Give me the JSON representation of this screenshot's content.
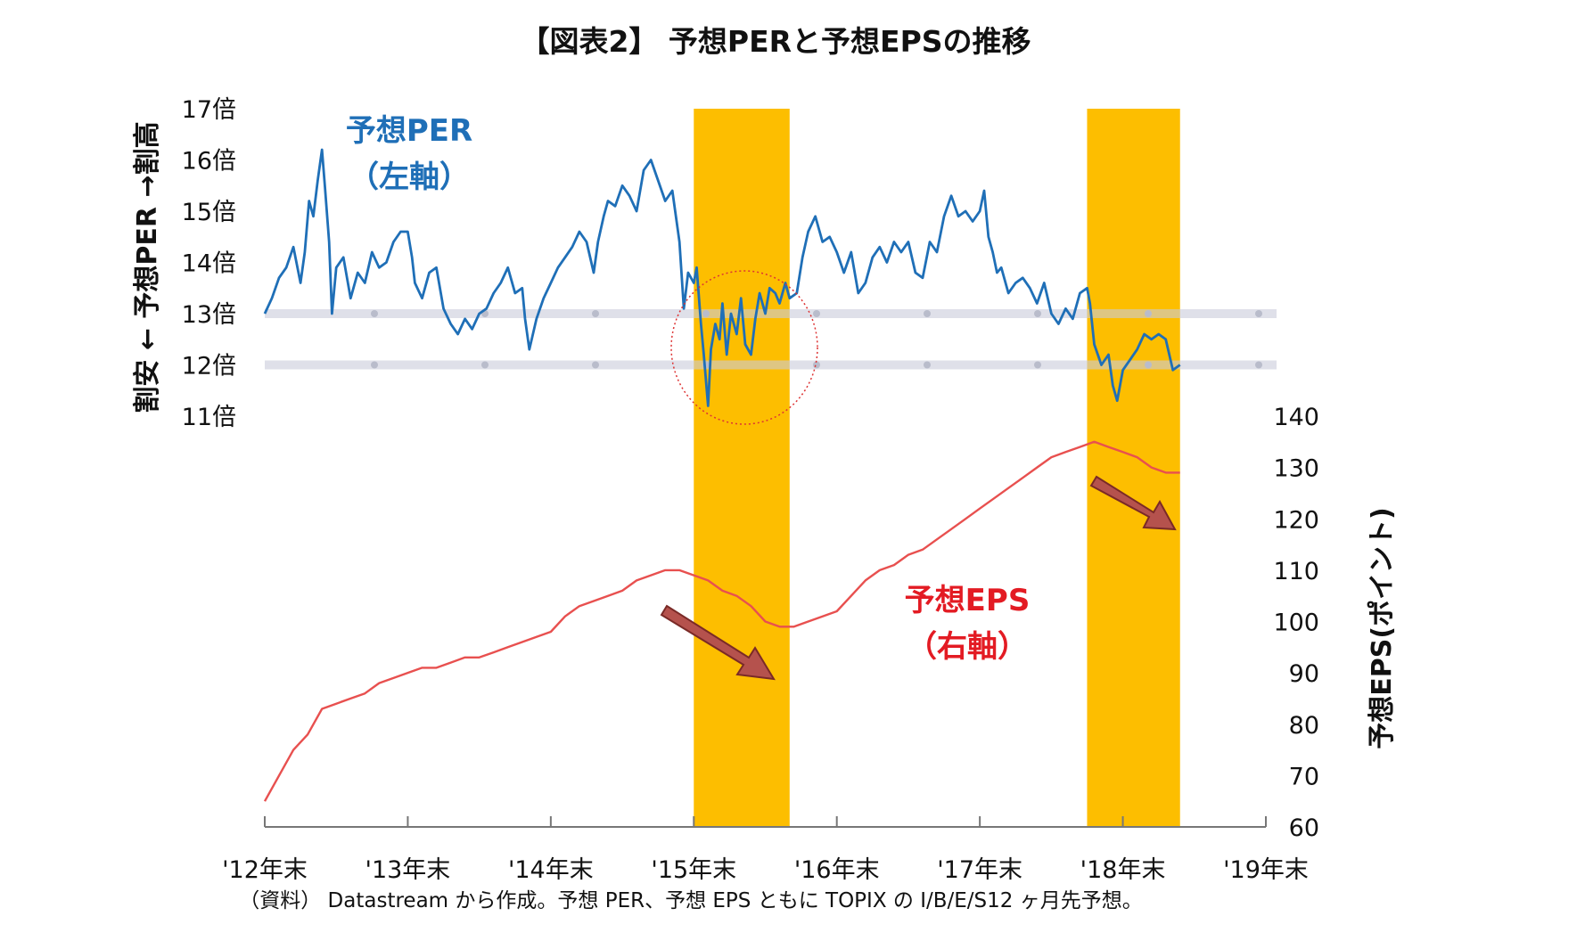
{
  "chart_data": {
    "type": "line",
    "title": "【図表2】 予想PERと予想EPSの推移",
    "note": "（資料） Datastream から作成。予想 PER、予想 EPS ともに TOPIX の I/B/E/S12 ヶ月先予想。",
    "x_axis": {
      "tick_labels": [
        "'12年末",
        "'13年末",
        "'14年末",
        "'15年末",
        "'16年末",
        "'17年末",
        "'18年末",
        "'19年末"
      ],
      "range": [
        2012.0,
        2019.0
      ]
    },
    "left_axis": {
      "title": "割安 ← 予想PER →割高",
      "tick_labels": [
        "17倍",
        "16倍",
        "15倍",
        "14倍",
        "13倍",
        "12倍",
        "11倍"
      ],
      "ticks": [
        17,
        16,
        15,
        14,
        13,
        12,
        11
      ],
      "range": [
        11,
        17
      ],
      "reference_bands": [
        13,
        12
      ]
    },
    "right_axis": {
      "title": "予想EPS(ポイント)",
      "tick_labels": [
        "140",
        "130",
        "120",
        "110",
        "100",
        "90",
        "80",
        "70",
        "60"
      ],
      "ticks": [
        140,
        130,
        120,
        110,
        100,
        90,
        80,
        70,
        60
      ],
      "range": [
        60,
        140
      ]
    },
    "highlight_periods": [
      {
        "start": 2015.0,
        "end": 2015.67
      },
      {
        "start": 2017.75,
        "end": 2018.4
      }
    ],
    "annotations": {
      "per_label": "予想PER",
      "per_sub": "（左軸）",
      "eps_label": "予想EPS",
      "eps_sub": "（右軸）"
    },
    "series": [
      {
        "name": "予想PER",
        "axis": "left",
        "color": "#1f6fb7",
        "points": [
          [
            2012.0,
            13.0
          ],
          [
            2012.05,
            13.3
          ],
          [
            2012.1,
            13.7
          ],
          [
            2012.15,
            13.9
          ],
          [
            2012.2,
            14.3
          ],
          [
            2012.25,
            13.6
          ],
          [
            2012.28,
            14.2
          ],
          [
            2012.31,
            15.2
          ],
          [
            2012.34,
            14.9
          ],
          [
            2012.37,
            15.6
          ],
          [
            2012.4,
            16.2
          ],
          [
            2012.42,
            15.5
          ],
          [
            2012.45,
            14.4
          ],
          [
            2012.47,
            13.0
          ],
          [
            2012.5,
            13.9
          ],
          [
            2012.55,
            14.1
          ],
          [
            2012.6,
            13.3
          ],
          [
            2012.65,
            13.8
          ],
          [
            2012.7,
            13.6
          ],
          [
            2012.75,
            14.2
          ],
          [
            2012.8,
            13.9
          ],
          [
            2012.85,
            14.0
          ],
          [
            2012.9,
            14.4
          ],
          [
            2012.95,
            14.6
          ],
          [
            2013.0,
            14.6
          ],
          [
            2013.03,
            14.1
          ],
          [
            2013.05,
            13.6
          ],
          [
            2013.1,
            13.3
          ],
          [
            2013.15,
            13.8
          ],
          [
            2013.2,
            13.9
          ],
          [
            2013.25,
            13.1
          ],
          [
            2013.3,
            12.8
          ],
          [
            2013.35,
            12.6
          ],
          [
            2013.4,
            12.9
          ],
          [
            2013.45,
            12.7
          ],
          [
            2013.5,
            13.0
          ],
          [
            2013.55,
            13.1
          ],
          [
            2013.6,
            13.4
          ],
          [
            2013.65,
            13.6
          ],
          [
            2013.7,
            13.9
          ],
          [
            2013.75,
            13.4
          ],
          [
            2013.8,
            13.5
          ],
          [
            2013.82,
            12.9
          ],
          [
            2013.85,
            12.3
          ],
          [
            2013.9,
            12.9
          ],
          [
            2013.95,
            13.3
          ],
          [
            2014.0,
            13.6
          ],
          [
            2014.05,
            13.9
          ],
          [
            2014.1,
            14.1
          ],
          [
            2014.15,
            14.3
          ],
          [
            2014.2,
            14.6
          ],
          [
            2014.25,
            14.4
          ],
          [
            2014.3,
            13.8
          ],
          [
            2014.33,
            14.4
          ],
          [
            2014.37,
            14.9
          ],
          [
            2014.4,
            15.2
          ],
          [
            2014.45,
            15.1
          ],
          [
            2014.5,
            15.5
          ],
          [
            2014.55,
            15.3
          ],
          [
            2014.6,
            15.0
          ],
          [
            2014.65,
            15.8
          ],
          [
            2014.7,
            16.0
          ],
          [
            2014.75,
            15.6
          ],
          [
            2014.8,
            15.2
          ],
          [
            2014.85,
            15.4
          ],
          [
            2014.88,
            14.8
          ],
          [
            2014.9,
            14.4
          ],
          [
            2014.93,
            13.1
          ],
          [
            2014.96,
            13.8
          ],
          [
            2015.0,
            13.6
          ],
          [
            2015.02,
            13.9
          ],
          [
            2015.05,
            12.8
          ],
          [
            2015.07,
            12.2
          ],
          [
            2015.1,
            11.2
          ],
          [
            2015.12,
            12.3
          ],
          [
            2015.15,
            12.8
          ],
          [
            2015.18,
            12.5
          ],
          [
            2015.2,
            13.2
          ],
          [
            2015.23,
            12.2
          ],
          [
            2015.26,
            13.0
          ],
          [
            2015.3,
            12.6
          ],
          [
            2015.33,
            13.3
          ],
          [
            2015.36,
            12.4
          ],
          [
            2015.4,
            12.2
          ],
          [
            2015.43,
            12.9
          ],
          [
            2015.46,
            13.4
          ],
          [
            2015.5,
            13.0
          ],
          [
            2015.53,
            13.5
          ],
          [
            2015.57,
            13.4
          ],
          [
            2015.6,
            13.2
          ],
          [
            2015.64,
            13.6
          ],
          [
            2015.67,
            13.3
          ],
          [
            2015.72,
            13.4
          ],
          [
            2015.76,
            14.1
          ],
          [
            2015.8,
            14.6
          ],
          [
            2015.85,
            14.9
          ],
          [
            2015.9,
            14.4
          ],
          [
            2015.95,
            14.5
          ],
          [
            2016.0,
            14.2
          ],
          [
            2016.05,
            13.8
          ],
          [
            2016.1,
            14.2
          ],
          [
            2016.15,
            13.4
          ],
          [
            2016.2,
            13.6
          ],
          [
            2016.25,
            14.1
          ],
          [
            2016.3,
            14.3
          ],
          [
            2016.35,
            14.0
          ],
          [
            2016.4,
            14.4
          ],
          [
            2016.45,
            14.2
          ],
          [
            2016.5,
            14.4
          ],
          [
            2016.55,
            13.8
          ],
          [
            2016.6,
            13.7
          ],
          [
            2016.65,
            14.4
          ],
          [
            2016.7,
            14.2
          ],
          [
            2016.75,
            14.9
          ],
          [
            2016.8,
            15.3
          ],
          [
            2016.85,
            14.9
          ],
          [
            2016.9,
            15.0
          ],
          [
            2016.95,
            14.8
          ],
          [
            2017.0,
            15.0
          ],
          [
            2017.03,
            15.4
          ],
          [
            2017.06,
            14.5
          ],
          [
            2017.09,
            14.2
          ],
          [
            2017.12,
            13.8
          ],
          [
            2017.15,
            13.9
          ],
          [
            2017.2,
            13.4
          ],
          [
            2017.25,
            13.6
          ],
          [
            2017.3,
            13.7
          ],
          [
            2017.35,
            13.5
          ],
          [
            2017.4,
            13.2
          ],
          [
            2017.45,
            13.6
          ],
          [
            2017.5,
            13.0
          ],
          [
            2017.55,
            12.8
          ],
          [
            2017.6,
            13.1
          ],
          [
            2017.65,
            12.9
          ],
          [
            2017.7,
            13.4
          ],
          [
            2017.75,
            13.5
          ],
          [
            2017.77,
            13.2
          ],
          [
            2017.8,
            12.4
          ],
          [
            2017.85,
            12.0
          ],
          [
            2017.9,
            12.2
          ],
          [
            2017.93,
            11.6
          ],
          [
            2017.96,
            11.3
          ],
          [
            2018.0,
            11.9
          ],
          [
            2018.05,
            12.1
          ],
          [
            2018.1,
            12.3
          ],
          [
            2018.15,
            12.6
          ],
          [
            2018.2,
            12.5
          ],
          [
            2018.25,
            12.6
          ],
          [
            2018.3,
            12.5
          ],
          [
            2018.35,
            11.9
          ],
          [
            2018.4,
            12.0
          ]
        ]
      },
      {
        "name": "予想EPS",
        "axis": "right",
        "color": "#e8504f",
        "points": [
          [
            2012.0,
            65
          ],
          [
            2012.1,
            70
          ],
          [
            2012.2,
            75
          ],
          [
            2012.3,
            78
          ],
          [
            2012.4,
            83
          ],
          [
            2012.5,
            84
          ],
          [
            2012.6,
            85
          ],
          [
            2012.7,
            86
          ],
          [
            2012.8,
            88
          ],
          [
            2012.9,
            89
          ],
          [
            2013.0,
            90
          ],
          [
            2013.1,
            91
          ],
          [
            2013.2,
            91
          ],
          [
            2013.3,
            92
          ],
          [
            2013.4,
            93
          ],
          [
            2013.5,
            93
          ],
          [
            2013.6,
            94
          ],
          [
            2013.7,
            95
          ],
          [
            2013.8,
            96
          ],
          [
            2013.9,
            97
          ],
          [
            2014.0,
            98
          ],
          [
            2014.1,
            101
          ],
          [
            2014.2,
            103
          ],
          [
            2014.3,
            104
          ],
          [
            2014.4,
            105
          ],
          [
            2014.5,
            106
          ],
          [
            2014.6,
            108
          ],
          [
            2014.7,
            109
          ],
          [
            2014.8,
            110
          ],
          [
            2014.9,
            110
          ],
          [
            2015.0,
            109
          ],
          [
            2015.1,
            108
          ],
          [
            2015.2,
            106
          ],
          [
            2015.3,
            105
          ],
          [
            2015.4,
            103
          ],
          [
            2015.5,
            100
          ],
          [
            2015.6,
            99
          ],
          [
            2015.7,
            99
          ],
          [
            2015.8,
            100
          ],
          [
            2015.9,
            101
          ],
          [
            2016.0,
            102
          ],
          [
            2016.1,
            105
          ],
          [
            2016.2,
            108
          ],
          [
            2016.3,
            110
          ],
          [
            2016.4,
            111
          ],
          [
            2016.5,
            113
          ],
          [
            2016.6,
            114
          ],
          [
            2016.7,
            116
          ],
          [
            2016.8,
            118
          ],
          [
            2016.9,
            120
          ],
          [
            2017.0,
            122
          ],
          [
            2017.1,
            124
          ],
          [
            2017.2,
            126
          ],
          [
            2017.3,
            128
          ],
          [
            2017.4,
            130
          ],
          [
            2017.5,
            132
          ],
          [
            2017.6,
            133
          ],
          [
            2017.7,
            134
          ],
          [
            2017.8,
            135
          ],
          [
            2017.9,
            134
          ],
          [
            2018.0,
            133
          ],
          [
            2018.1,
            132
          ],
          [
            2018.2,
            130
          ],
          [
            2018.3,
            129
          ],
          [
            2018.4,
            129
          ]
        ]
      }
    ]
  }
}
